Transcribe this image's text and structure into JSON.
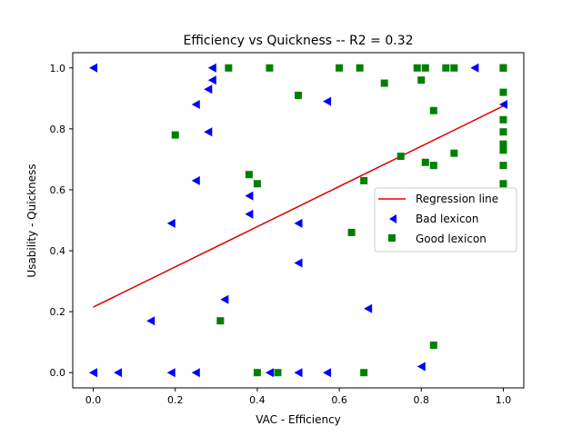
{
  "chart_data": {
    "type": "scatter",
    "title": "Efficiency  vs  Quickness -- R2 = 0.32",
    "xlabel": "VAC - Efficiency",
    "ylabel": "Usability - Quickness",
    "xlim": [
      -0.05,
      1.05
    ],
    "ylim": [
      -0.05,
      1.05
    ],
    "xticks": [
      0.0,
      0.2,
      0.4,
      0.6,
      0.8,
      1.0
    ],
    "yticks": [
      0.0,
      0.2,
      0.4,
      0.6,
      0.8,
      1.0
    ],
    "xtick_labels": [
      "0.0",
      "0.2",
      "0.4",
      "0.6",
      "0.8",
      "1.0"
    ],
    "ytick_labels": [
      "0.0",
      "0.2",
      "0.4",
      "0.6",
      "0.8",
      "1.0"
    ],
    "grid": false,
    "legend_position": "center-right",
    "regression_line": {
      "name": "Regression line",
      "color": "#e00000",
      "x": [
        0.0,
        1.0
      ],
      "y": [
        0.215,
        0.875
      ]
    },
    "series": [
      {
        "name": "Bad lexicon",
        "marker": "triangle-left",
        "color": "#0000ff",
        "x": [
          0.0,
          0.0,
          0.0,
          0.06,
          0.14,
          0.19,
          0.19,
          0.25,
          0.25,
          0.25,
          0.28,
          0.28,
          0.29,
          0.29,
          0.32,
          0.38,
          0.38,
          0.43,
          0.5,
          0.5,
          0.5,
          0.57,
          0.57,
          0.67,
          0.8,
          0.93,
          1.0
        ],
        "y": [
          1.0,
          0.0,
          0.0,
          0.0,
          0.17,
          0.49,
          0.0,
          0.88,
          0.63,
          0.0,
          0.93,
          0.79,
          1.0,
          0.96,
          0.24,
          0.58,
          0.52,
          0.0,
          0.49,
          0.36,
          0.0,
          0.89,
          0.0,
          0.21,
          0.02,
          1.0,
          0.88
        ]
      },
      {
        "name": "Good lexicon",
        "marker": "square",
        "color": "#008000",
        "x": [
          0.2,
          0.31,
          0.33,
          0.38,
          0.4,
          0.4,
          0.43,
          0.45,
          0.5,
          0.6,
          0.63,
          0.65,
          0.66,
          0.66,
          0.71,
          0.75,
          0.79,
          0.8,
          0.81,
          0.81,
          0.83,
          0.83,
          0.83,
          0.86,
          0.88,
          0.88,
          1.0,
          1.0,
          1.0,
          1.0,
          1.0,
          1.0,
          1.0,
          1.0,
          1.0,
          1.0
        ],
        "y": [
          0.78,
          0.17,
          1.0,
          0.65,
          0.62,
          0.0,
          1.0,
          0.0,
          0.91,
          1.0,
          0.46,
          1.0,
          0.63,
          0.0,
          0.95,
          0.71,
          1.0,
          0.96,
          1.0,
          0.69,
          0.86,
          0.68,
          0.09,
          1.0,
          1.0,
          0.72,
          1.0,
          0.92,
          0.83,
          0.79,
          0.75,
          0.73,
          0.68,
          0.62,
          1.0,
          1.0
        ]
      }
    ]
  }
}
